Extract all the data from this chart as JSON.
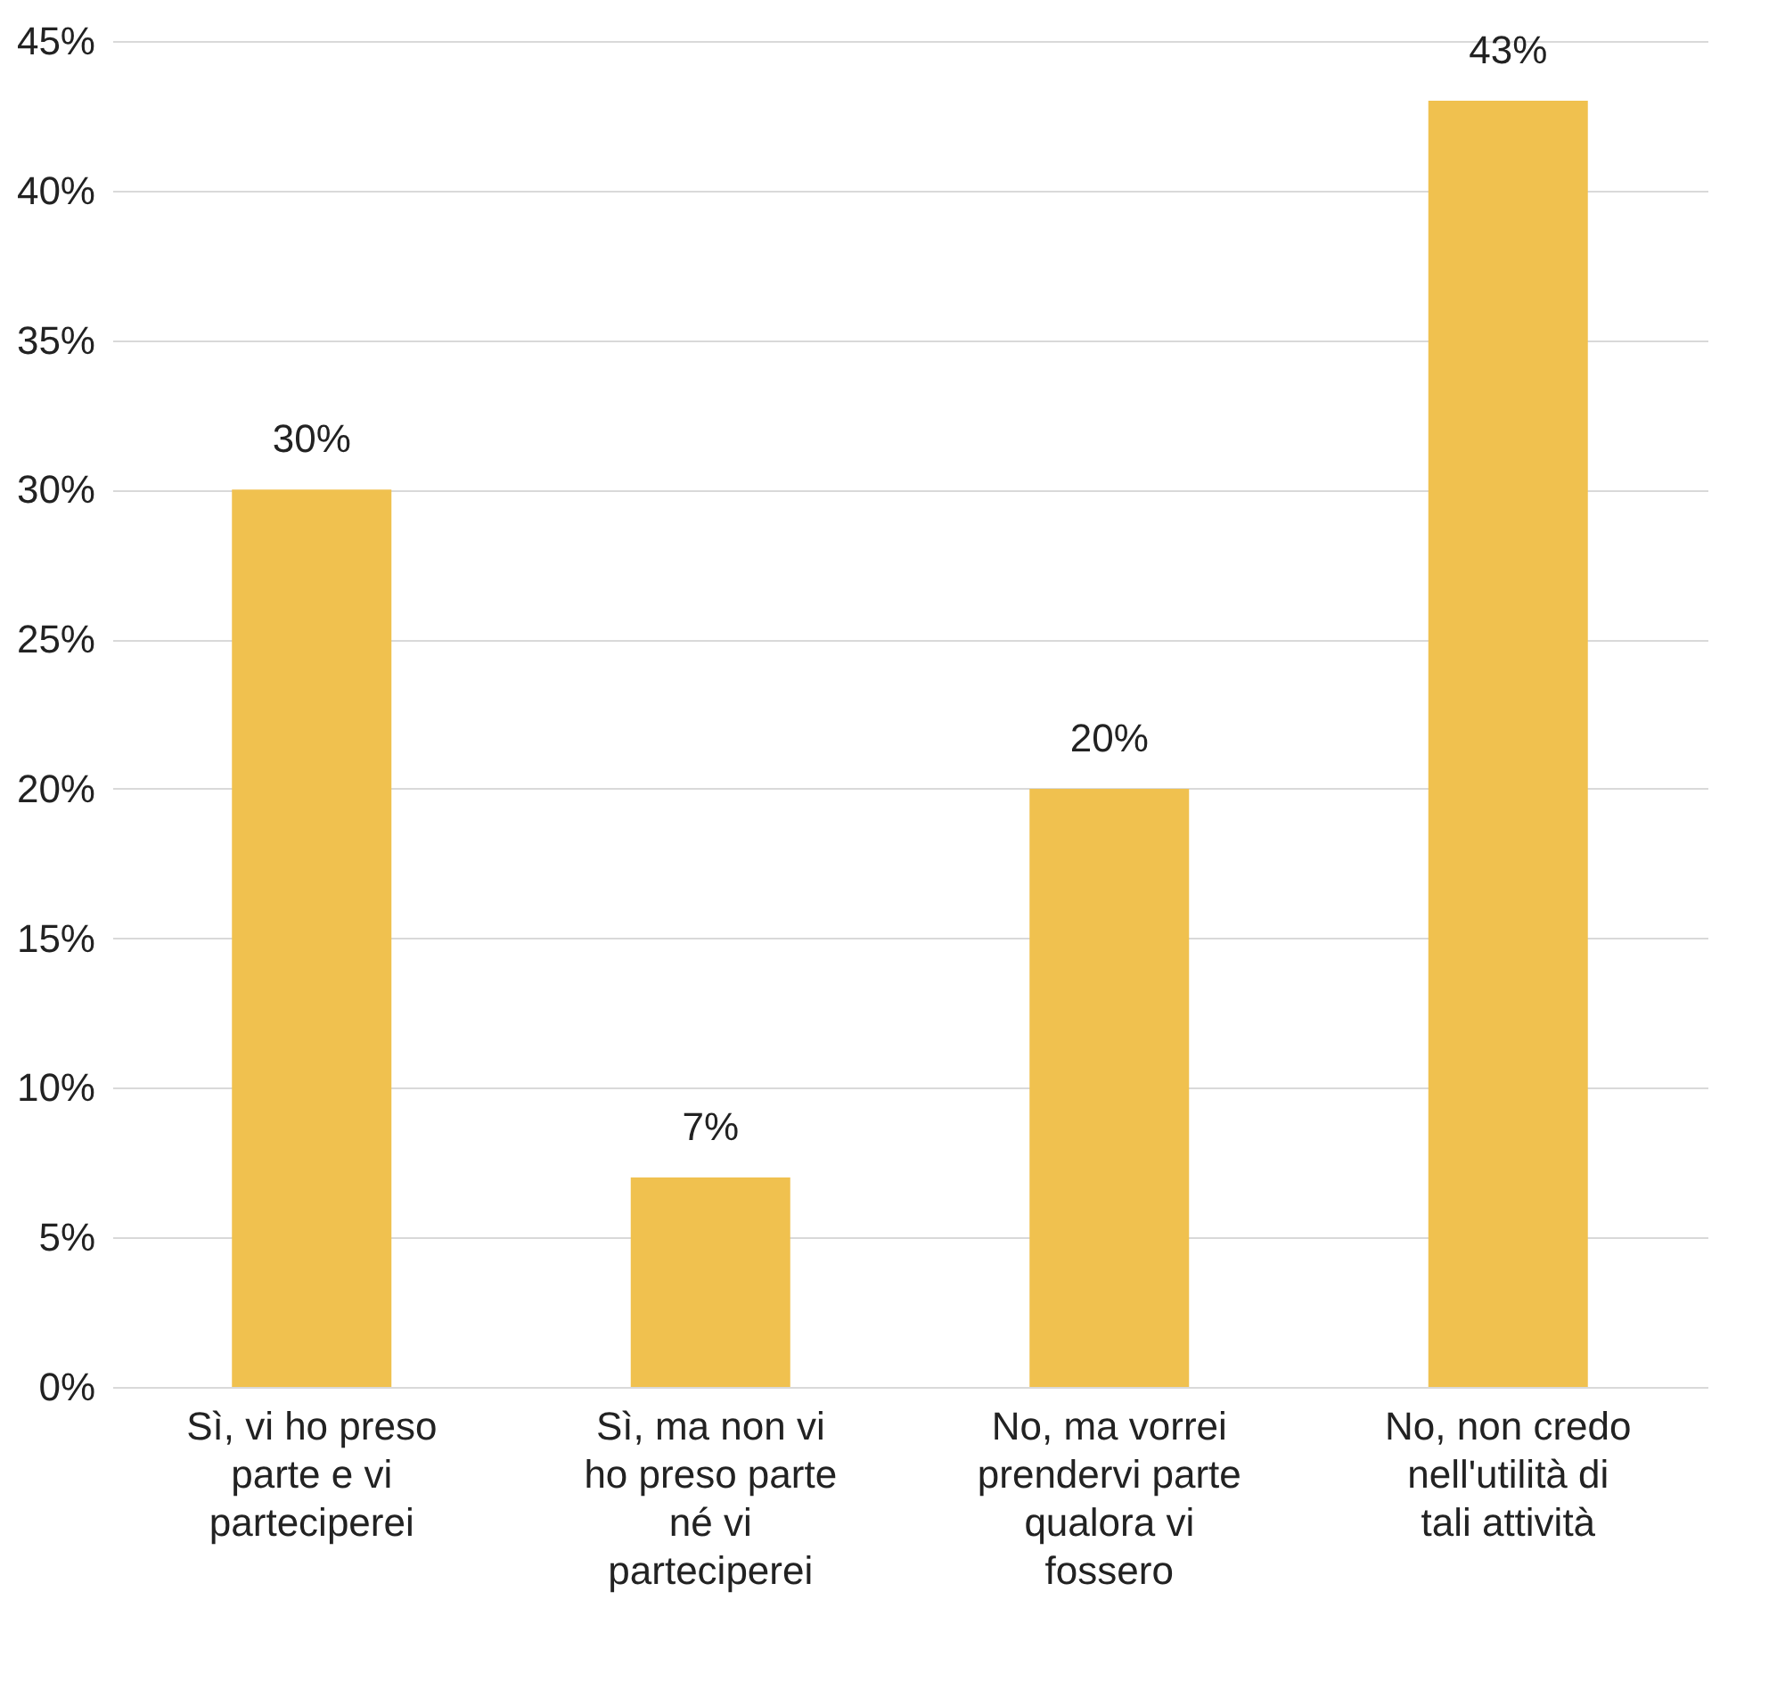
{
  "chart_data": {
    "type": "bar",
    "categories": [
      "Sì, vi ho preso parte e vi parteciperei",
      "Sì, ma non vi ho preso parte né vi parteciperei",
      "No, ma vorrei prendervi parte qualora vi fossero",
      "No, non credo nell'utilità di tali attività"
    ],
    "values": [
      30,
      7,
      20,
      43
    ],
    "value_labels": [
      "30%",
      "7%",
      "20%",
      "43%"
    ],
    "color": "#f0c14f",
    "ylim": [
      0,
      45
    ],
    "yticks": [
      {
        "value": 0,
        "label": "0%"
      },
      {
        "value": 5,
        "label": "5%"
      },
      {
        "value": 10,
        "label": "10%"
      },
      {
        "value": 15,
        "label": "15%"
      },
      {
        "value": 20,
        "label": "20%"
      },
      {
        "value": 25,
        "label": "25%"
      },
      {
        "value": 30,
        "label": "30%"
      },
      {
        "value": 35,
        "label": "35%"
      },
      {
        "value": 40,
        "label": "40%"
      },
      {
        "value": 45,
        "label": "45%"
      }
    ],
    "grid": "y"
  }
}
